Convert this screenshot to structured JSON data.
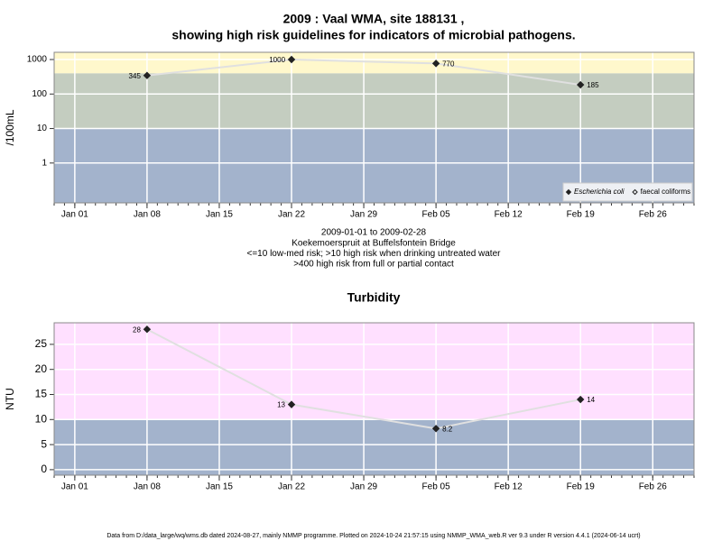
{
  "chart_data": [
    {
      "type": "line",
      "title": "2009 : Vaal WMA, site 188131 ,",
      "subtitle": "showing high risk guidelines for indicators of microbial pathogens.",
      "notes": [
        "2009-01-01 to 2009-02-28",
        "Koekemoerspruit at Buffelsfontein Bridge",
        "<=10 low-med risk; >10 high risk when drinking untreated water",
        ">400 high risk from full or partial contact"
      ],
      "ylabel": "/100mL",
      "ylog": true,
      "x": [
        "2009-01-08",
        "2009-01-22",
        "2009-02-05",
        "2009-02-19"
      ],
      "xlim": [
        "2008-12-30",
        "2009-03-02"
      ],
      "xticks": [
        {
          "value": "2009-01-01",
          "label": "Jan 01"
        },
        {
          "value": "2009-01-08",
          "label": "Jan 08"
        },
        {
          "value": "2009-01-15",
          "label": "Jan 15"
        },
        {
          "value": "2009-01-22",
          "label": "Jan 22"
        },
        {
          "value": "2009-01-29",
          "label": "Jan 29"
        },
        {
          "value": "2009-02-05",
          "label": "Feb 05"
        },
        {
          "value": "2009-02-12",
          "label": "Feb 12"
        },
        {
          "value": "2009-02-19",
          "label": "Feb 19"
        },
        {
          "value": "2009-02-26",
          "label": "Feb 26"
        }
      ],
      "ylim": [
        0.07,
        1620
      ],
      "yticks": [
        1,
        10,
        100,
        1000
      ],
      "grid": true,
      "bands": [
        {
          "to": 10,
          "color": "#a3b3cc"
        },
        {
          "from": 10,
          "to": 400,
          "color": "#c4cdc0"
        },
        {
          "from": 400,
          "color": "#fff8cc"
        }
      ],
      "legend": "bottom right",
      "series": [
        {
          "name": "Escherichia coli",
          "color": "#222222",
          "line_color": "#e0e0e0",
          "filled": true,
          "values": [
            345,
            1000,
            770,
            185
          ]
        },
        {
          "name": "faecal coliforms",
          "color": "#222222",
          "line_color": "#e0e0e0",
          "filled": false,
          "values": [
            null,
            null,
            null,
            null
          ]
        }
      ]
    },
    {
      "type": "line",
      "title": "Turbidity",
      "ylabel": "NTU",
      "ylog": false,
      "x": [
        "2009-01-08",
        "2009-01-22",
        "2009-02-05",
        "2009-02-19"
      ],
      "xlim": [
        "2008-12-30",
        "2009-03-02"
      ],
      "xticks": [
        {
          "value": "2009-01-01",
          "label": "Jan 01"
        },
        {
          "value": "2009-01-08",
          "label": "Jan 08"
        },
        {
          "value": "2009-01-15",
          "label": "Jan 15"
        },
        {
          "value": "2009-01-22",
          "label": "Jan 22"
        },
        {
          "value": "2009-01-29",
          "label": "Jan 29"
        },
        {
          "value": "2009-02-05",
          "label": "Feb 05"
        },
        {
          "value": "2009-02-12",
          "label": "Feb 12"
        },
        {
          "value": "2009-02-19",
          "label": "Feb 19"
        },
        {
          "value": "2009-02-26",
          "label": "Feb 26"
        }
      ],
      "ylim": [
        -1.1,
        29.3
      ],
      "yticks": [
        0,
        5,
        10,
        15,
        20,
        25
      ],
      "grid": true,
      "bands": [
        {
          "to": 10,
          "color": "#a3b3cc"
        },
        {
          "from": 10,
          "color": "#ffe0ff"
        }
      ],
      "series": [
        {
          "color": "#222222",
          "line_color": "#e0e0e0",
          "filled": true,
          "values": [
            28,
            13,
            8.2,
            14
          ]
        }
      ]
    }
  ],
  "footer": "Data from D:/data_large/wq/wms.db dated 2024-08-27, mainly NMMP programme. Plotted on 2024-10-24 21:57:15 using NMMP_WMA_web.R ver 9.3 under R version 4.4.1 (2024-06-14 ucrt)"
}
